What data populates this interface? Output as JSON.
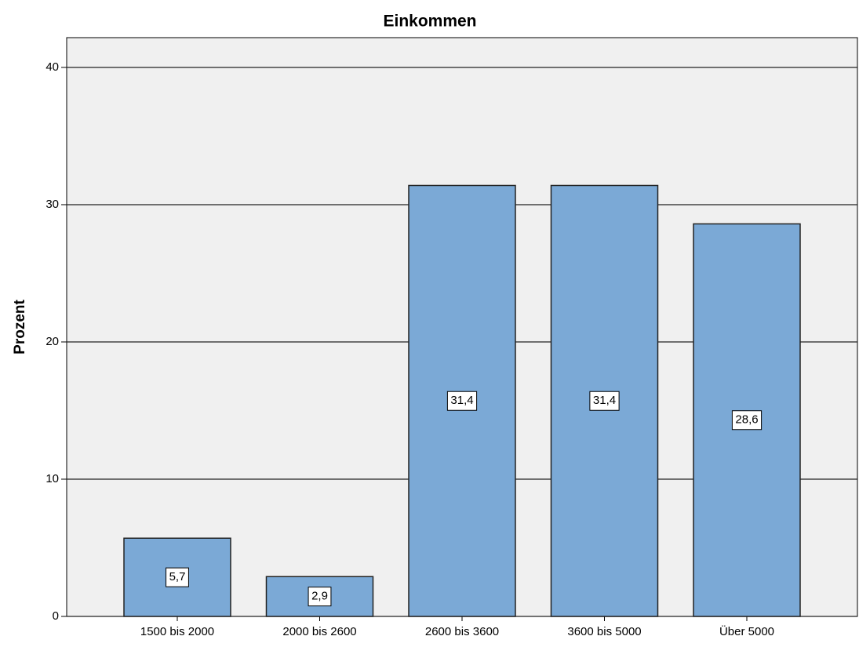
{
  "chart_data": {
    "type": "bar",
    "title": "Einkommen",
    "y_label": "Prozent",
    "categories": [
      "1500 bis 2000",
      "2000 bis 2600",
      "2600 bis 3600",
      "3600 bis 5000",
      "Über 5000"
    ],
    "values": [
      5.7,
      2.9,
      31.4,
      31.4,
      28.6
    ],
    "value_labels": [
      "5,7",
      "2,9",
      "31,4",
      "31,4",
      "28,6"
    ],
    "color": "#7ba9d6",
    "ylim": [
      0,
      42.17
    ],
    "yticks": [
      0,
      10,
      20,
      30,
      40
    ],
    "grid": true
  }
}
